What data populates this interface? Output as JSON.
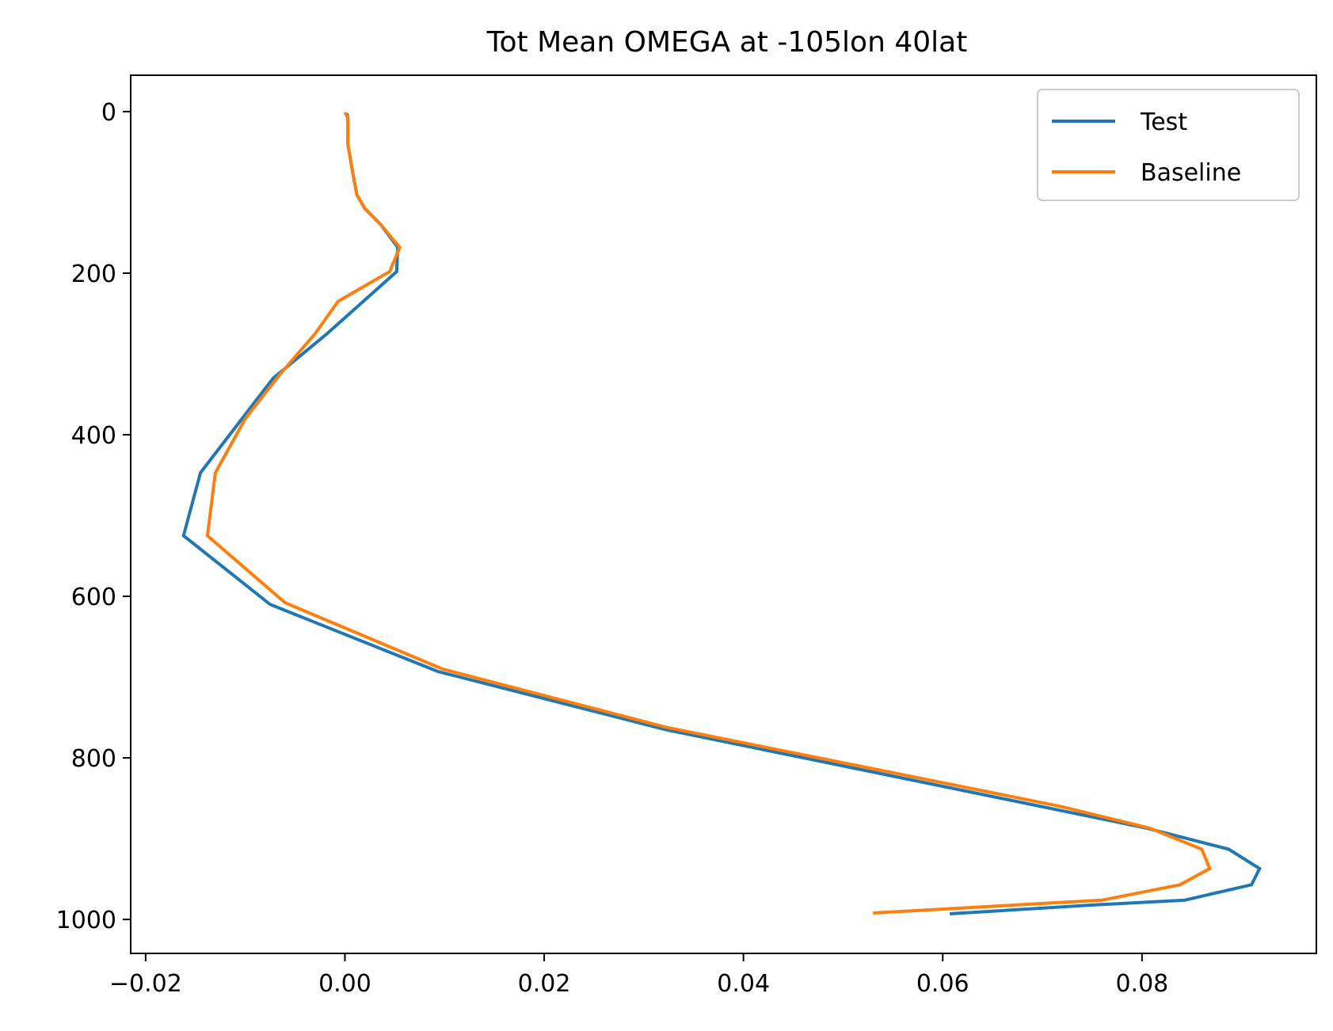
{
  "chart_data": {
    "type": "line",
    "title": "Tot Mean OMEGA at -105lon 40lat",
    "xlabel": "",
    "ylabel": "",
    "xlim": [
      -0.0215,
      0.0975
    ],
    "ylim": [
      1042,
      -45
    ],
    "y_inverted": true,
    "grid": false,
    "legend_position": "upper right",
    "xticks": [
      -0.02,
      0.0,
      0.02,
      0.04,
      0.06,
      0.08
    ],
    "xtick_labels": [
      "−0.02",
      "0.00",
      "0.02",
      "0.04",
      "0.06",
      "0.08"
    ],
    "yticks": [
      0,
      200,
      400,
      600,
      800,
      1000
    ],
    "ytick_labels": [
      "0",
      "200",
      "400",
      "600",
      "800",
      "1000"
    ],
    "series": [
      {
        "name": "Test",
        "color": "#1f77b4",
        "points": [
          [
            0.0002,
            2
          ],
          [
            0.0003,
            8
          ],
          [
            0.0003,
            20
          ],
          [
            0.0003,
            40
          ],
          [
            0.0007,
            70
          ],
          [
            0.0012,
            103
          ],
          [
            0.002,
            120
          ],
          [
            0.0036,
            140
          ],
          [
            0.0053,
            168
          ],
          [
            0.0052,
            198
          ],
          [
            -0.0018,
            275
          ],
          [
            -0.0072,
            330
          ],
          [
            -0.0102,
            378
          ],
          [
            -0.0145,
            447
          ],
          [
            -0.0162,
            525
          ],
          [
            -0.0075,
            610
          ],
          [
            0.0093,
            693
          ],
          [
            0.0322,
            765
          ],
          [
            0.0718,
            865
          ],
          [
            0.0805,
            887
          ],
          [
            0.0887,
            913
          ],
          [
            0.0918,
            937
          ],
          [
            0.091,
            957
          ],
          [
            0.0843,
            976
          ],
          [
            0.0752,
            982
          ],
          [
            0.0607,
            993
          ]
        ]
      },
      {
        "name": "Baseline",
        "color": "#ff7f0e",
        "points": [
          [
            0.0,
            1
          ],
          [
            0.0003,
            8
          ],
          [
            0.0003,
            20
          ],
          [
            0.0003,
            40
          ],
          [
            0.0007,
            70
          ],
          [
            0.0012,
            103
          ],
          [
            0.002,
            120
          ],
          [
            0.0036,
            140
          ],
          [
            0.0055,
            168
          ],
          [
            0.0045,
            198
          ],
          [
            -0.0007,
            235
          ],
          [
            -0.003,
            275
          ],
          [
            -0.0065,
            325
          ],
          [
            -0.01,
            380
          ],
          [
            -0.013,
            447
          ],
          [
            -0.0138,
            525
          ],
          [
            -0.006,
            608
          ],
          [
            0.0098,
            690
          ],
          [
            0.0322,
            762
          ],
          [
            0.0718,
            860
          ],
          [
            0.0808,
            887
          ],
          [
            0.086,
            913
          ],
          [
            0.0868,
            937
          ],
          [
            0.0838,
            957
          ],
          [
            0.076,
            976
          ],
          [
            0.053,
            992
          ]
        ]
      }
    ]
  }
}
